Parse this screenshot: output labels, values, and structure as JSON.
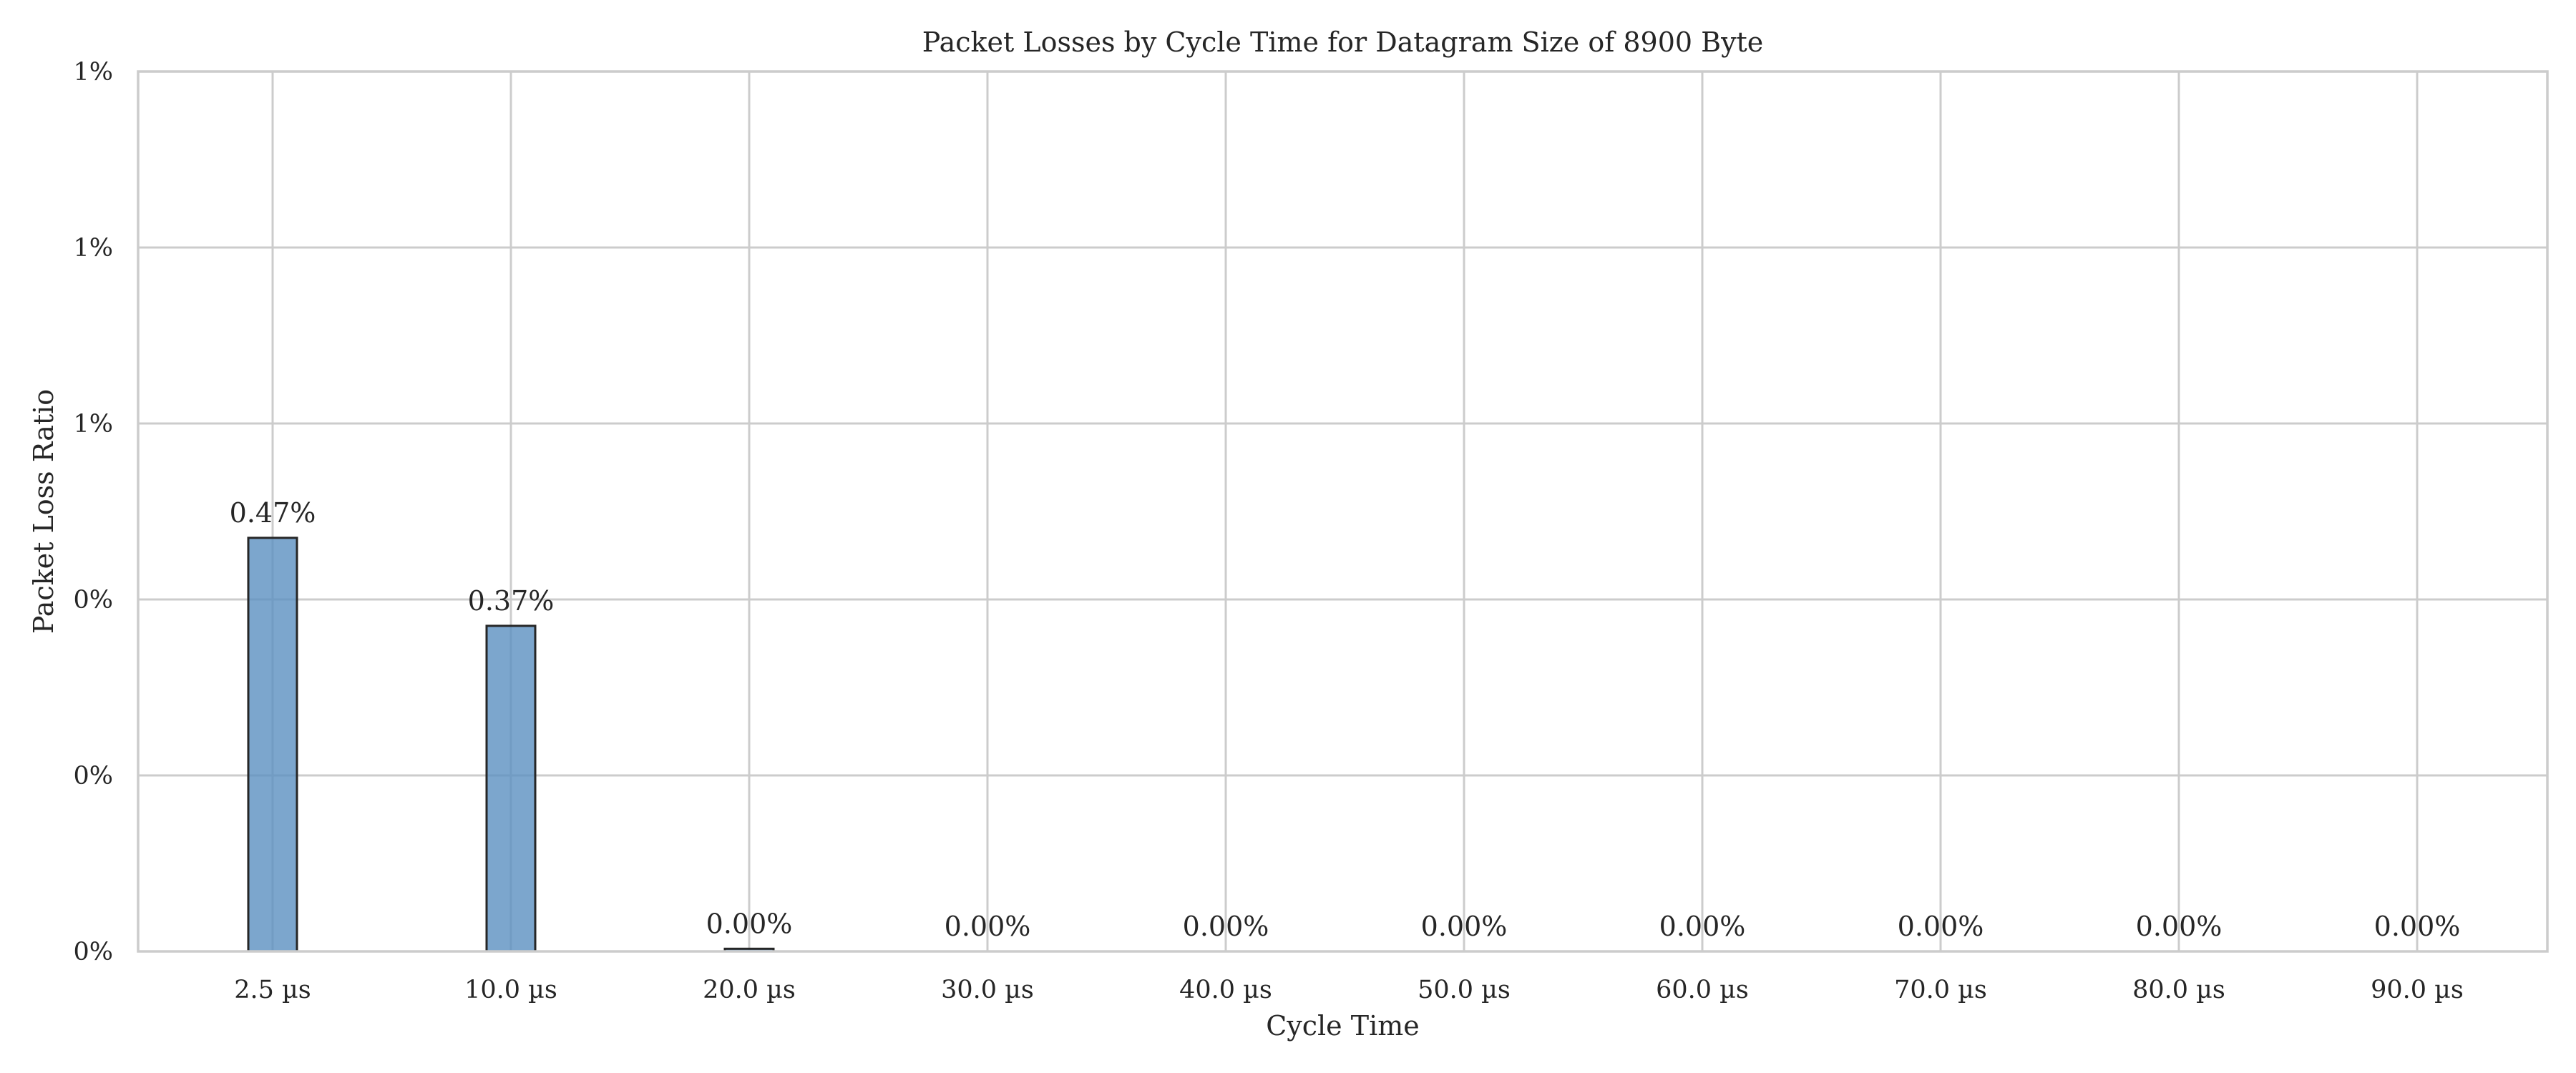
{
  "chart_data": {
    "type": "bar",
    "title": "Packet Losses by Cycle Time for Datagram Size of 8900 Byte",
    "xlabel": "Cycle Time",
    "ylabel": "Packet Loss Ratio",
    "categories": [
      "2.5 µs",
      "10.0 µs",
      "20.0 µs",
      "30.0 µs",
      "40.0 µs",
      "50.0 µs",
      "60.0 µs",
      "70.0 µs",
      "80.0 µs",
      "90.0 µs"
    ],
    "values": [
      0.47,
      0.37,
      0.003,
      0,
      0,
      0,
      0,
      0,
      0,
      0
    ],
    "data_labels": [
      "0.47%",
      "0.37%",
      "0.00%",
      "0.00%",
      "0.00%",
      "0.00%",
      "0.00%",
      "0.00%",
      "0.00%",
      "0.00%"
    ],
    "ylim": [
      0,
      1.0
    ],
    "yticks": [
      0,
      0.2,
      0.4,
      0.6,
      0.8,
      1.0
    ],
    "ytick_labels": [
      "0%",
      "0%",
      "0%",
      "1%",
      "1%",
      "1%"
    ],
    "grid": true,
    "legend": "none",
    "bar_color": "#5b90c0",
    "bar_edge_color": "#262626"
  }
}
